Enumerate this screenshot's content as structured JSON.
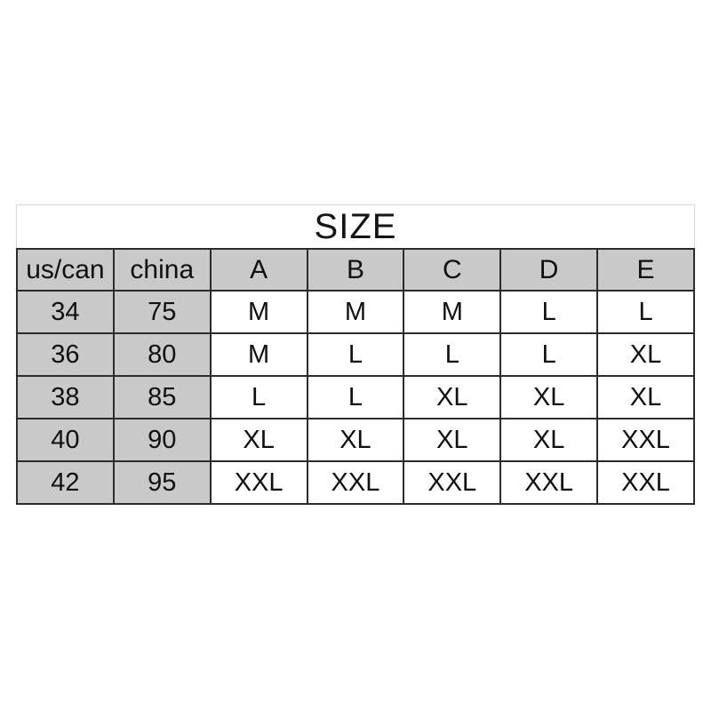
{
  "page": {
    "background_color": "#ffffff"
  },
  "size_chart": {
    "title": "SIZE",
    "columns": [
      "us/can",
      "china",
      "A",
      "B",
      "C",
      "D",
      "E"
    ],
    "rows": [
      [
        "34",
        "75",
        "M",
        "M",
        "M",
        "L",
        "L"
      ],
      [
        "36",
        "80",
        "M",
        "L",
        "L",
        "L",
        "XL"
      ],
      [
        "38",
        "85",
        "L",
        "L",
        "XL",
        "XL",
        "XL"
      ],
      [
        "40",
        "90",
        "XL",
        "XL",
        "XL",
        "XL",
        "XXL"
      ],
      [
        "42",
        "95",
        "XXL",
        "XXL",
        "XXL",
        "XXL",
        "XXL"
      ]
    ],
    "colors": {
      "header_background": "#c9c9c9",
      "label_column_background": "#c9c9c9",
      "data_cell_background": "#ffffff",
      "table_border": "#2b2b2b",
      "title_band_border": "#d8d8d8",
      "text": "#101010"
    }
  },
  "chart_data": {
    "type": "table",
    "title": "SIZE",
    "columns": [
      "us/can",
      "china",
      "A",
      "B",
      "C",
      "D",
      "E"
    ],
    "rows": [
      [
        "34",
        "75",
        "M",
        "M",
        "M",
        "L",
        "L"
      ],
      [
        "36",
        "80",
        "M",
        "L",
        "L",
        "L",
        "XL"
      ],
      [
        "38",
        "85",
        "L",
        "L",
        "XL",
        "XL",
        "XL"
      ],
      [
        "40",
        "90",
        "XL",
        "XL",
        "XL",
        "XL",
        "XXL"
      ],
      [
        "42",
        "95",
        "XXL",
        "XXL",
        "XXL",
        "XXL",
        "XXL"
      ]
    ]
  }
}
